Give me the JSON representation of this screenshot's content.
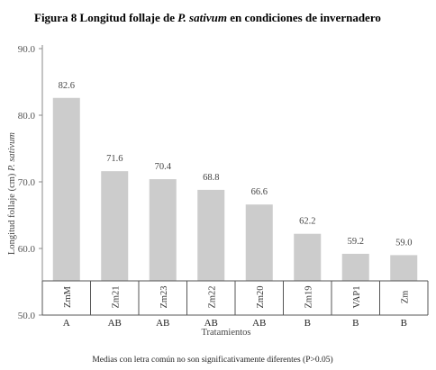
{
  "title_prefix": "Figura 8 Longitud follaje de ",
  "title_species": "P. sativum",
  "title_suffix": " en condiciones de invernadero",
  "ylabel_prefix": "Longitud follaje (cm) ",
  "ylabel_species": "P. sativum",
  "xlabel": "Tratamientos",
  "footnote": "Medias con letra común no son significativamente diferentes (P>0.05)",
  "chart_data": {
    "type": "bar",
    "categories": [
      "ZmM",
      "Zm21",
      "Zm23",
      "Zm22",
      "Zm20",
      "Zm19",
      "VAP1",
      "Zm"
    ],
    "values": [
      82.6,
      71.6,
      70.4,
      68.8,
      66.6,
      62.2,
      59.2,
      59.0
    ],
    "value_labels": [
      "82.6",
      "71.6",
      "70.4",
      "68.8",
      "66.6",
      "62.2",
      "59.2",
      "59.0"
    ],
    "groups": [
      "A",
      "AB",
      "AB",
      "AB",
      "AB",
      "B",
      "B",
      "B"
    ],
    "yticks": [
      "50.0",
      "60.0",
      "70.0",
      "80.0",
      "90.0"
    ],
    "ytick_values": [
      50,
      60,
      70,
      80,
      90
    ],
    "ylim": [
      50,
      90
    ],
    "bar_color": "#cccccc",
    "grid": false
  }
}
